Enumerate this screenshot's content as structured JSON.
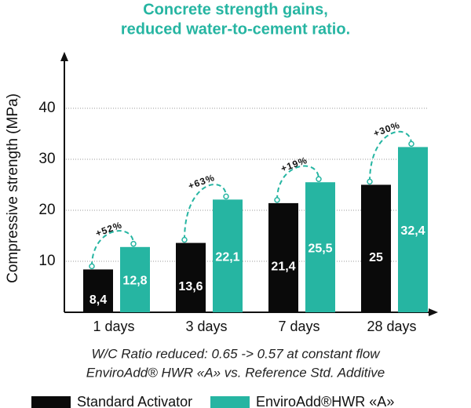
{
  "chart_data": {
    "type": "bar",
    "title": [
      "Concrete strength gains,",
      "reduced water-to-cement ratio."
    ],
    "y_label": "Compressive strength (MPa)",
    "categories": [
      "1 days",
      "3 days",
      "7 days",
      "28 days"
    ],
    "series": [
      {
        "name": "Standard Activator",
        "color": "#0a0a0a",
        "values": [
          8.4,
          13.6,
          21.4,
          25
        ],
        "value_labels": [
          "8,4",
          "13,6",
          "21,4",
          "25"
        ]
      },
      {
        "name": "EnviroAdd®HWR «A»",
        "color": "#26b5a2",
        "values": [
          12.8,
          22.1,
          25.5,
          32.4
        ],
        "value_labels": [
          "12,8",
          "22,1",
          "25,5",
          "32,4"
        ]
      }
    ],
    "annotations": [
      "+52%",
      "+63%",
      "+19%",
      "+30%"
    ],
    "notes": [
      "W/C Ratio reduced: 0.65 -> 0.57 at constant flow",
      "EnviroAdd® HWR «A» vs. Reference Std. Additive"
    ],
    "ylim": [
      0,
      50
    ],
    "yticks": [
      10,
      20,
      30,
      40
    ],
    "grid": true
  }
}
